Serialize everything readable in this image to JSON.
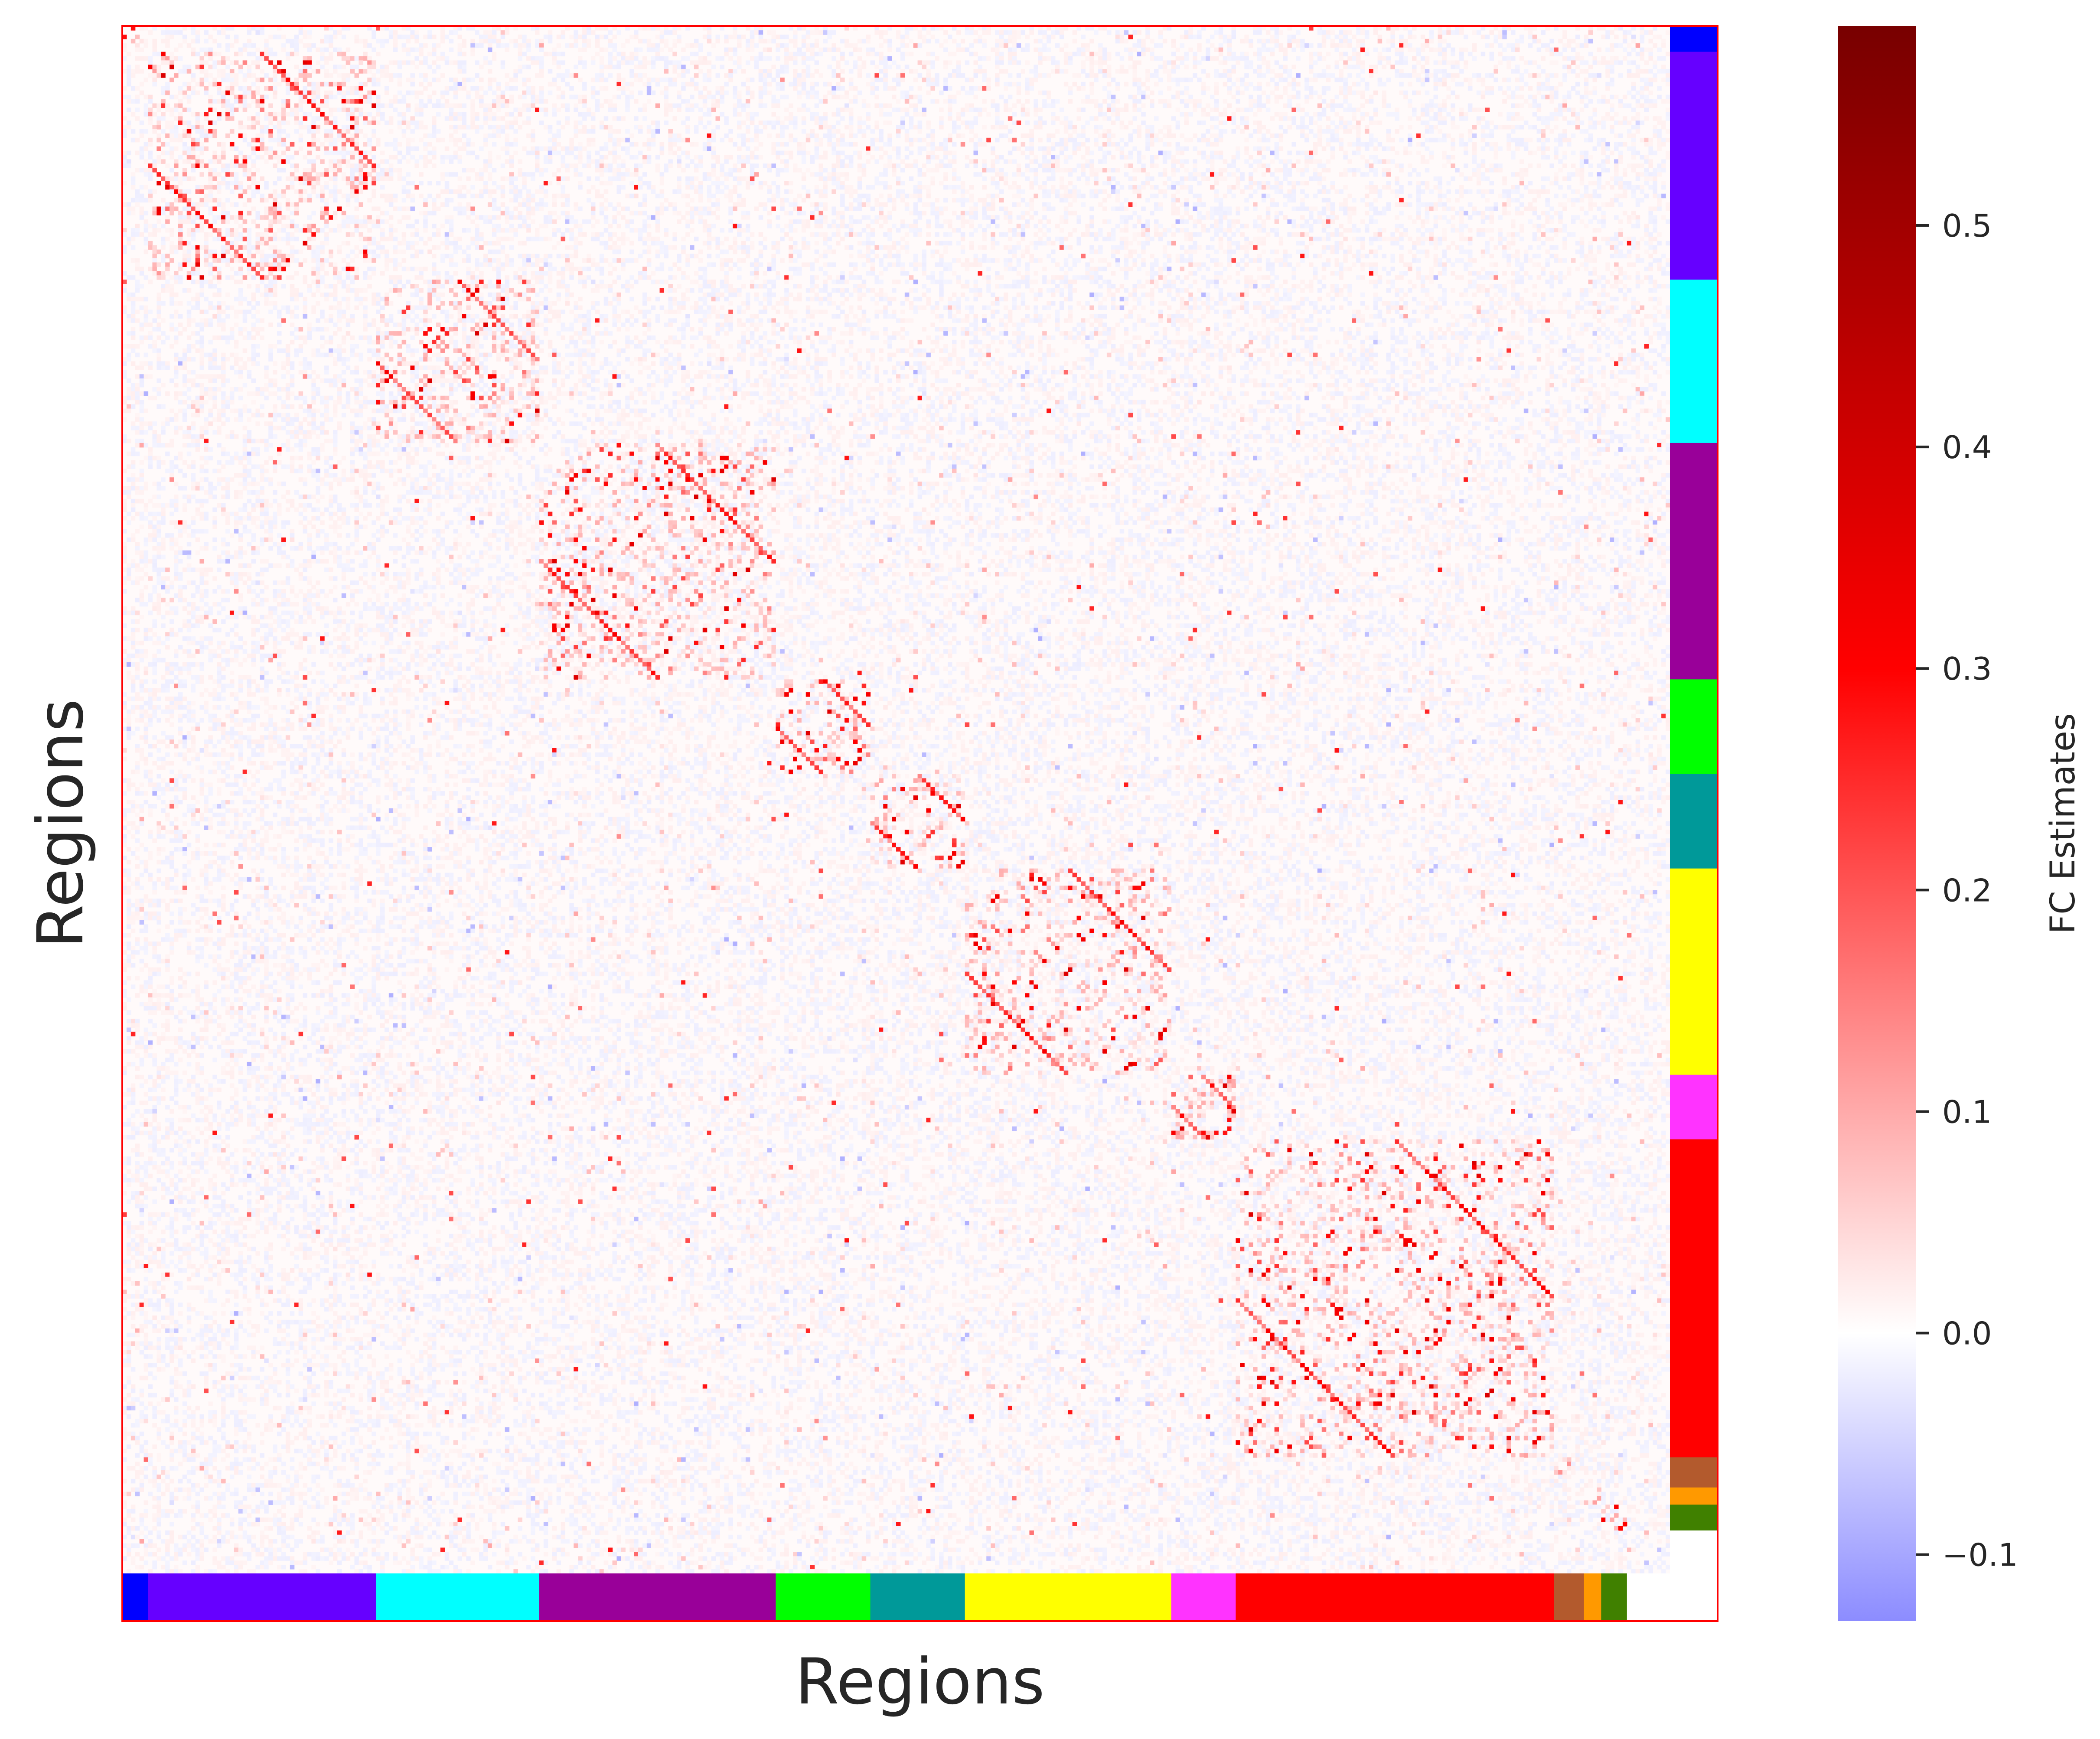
{
  "chart_data": {
    "type": "heatmap",
    "title": "",
    "xlabel": "Regions",
    "ylabel": "Regions",
    "colorbar": {
      "label": "FC Estimates",
      "vmin": -0.13,
      "vmax": 0.59,
      "ticks": [
        {
          "value": -0.1,
          "label": "−0.1"
        },
        {
          "value": 0.0,
          "label": "0.0"
        },
        {
          "value": 0.1,
          "label": "0.1"
        },
        {
          "value": 0.2,
          "label": "0.2"
        },
        {
          "value": 0.3,
          "label": "0.3"
        },
        {
          "value": 0.4,
          "label": "0.4"
        },
        {
          "value": 0.5,
          "label": "0.5"
        }
      ],
      "colormap": "bwr-like (blue - white - red - dark red)"
    },
    "matrix_size": 360,
    "networks": [
      {
        "start": 0,
        "end": 6,
        "color": "#0000ff"
      },
      {
        "start": 6,
        "end": 59,
        "color": "#6600ff"
      },
      {
        "start": 59,
        "end": 97,
        "color": "#00ffff"
      },
      {
        "start": 97,
        "end": 152,
        "color": "#990099"
      },
      {
        "start": 152,
        "end": 174,
        "color": "#00ff00"
      },
      {
        "start": 174,
        "end": 196,
        "color": "#009999"
      },
      {
        "start": 196,
        "end": 244,
        "color": "#ffff00"
      },
      {
        "start": 244,
        "end": 259,
        "color": "#ff33ff"
      },
      {
        "start": 259,
        "end": 333,
        "color": "#ff0000"
      },
      {
        "start": 333,
        "end": 340,
        "color": "#b35a2d"
      },
      {
        "start": 340,
        "end": 344,
        "color": "#ff9900"
      },
      {
        "start": 344,
        "end": 350,
        "color": "#408000"
      },
      {
        "start": 350,
        "end": 360,
        "color": "#ffffff"
      }
    ]
  }
}
